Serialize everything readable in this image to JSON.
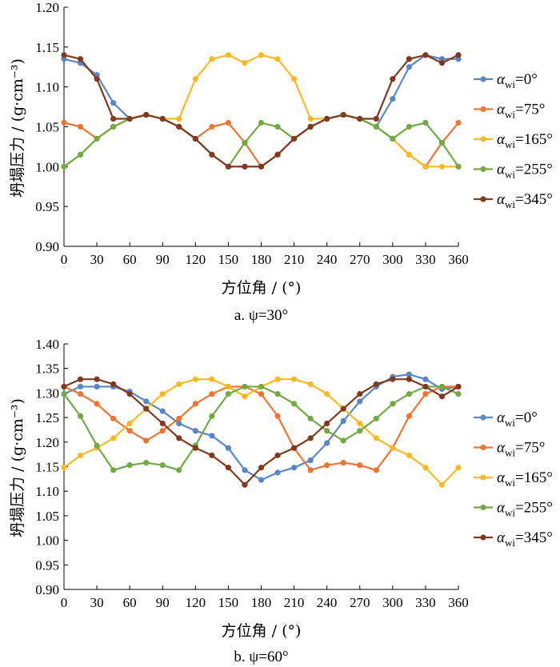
{
  "chart_data": [
    {
      "type": "line",
      "caption": "a. ψ=30°",
      "xlabel": "方位角 / (°)",
      "ylabel": "坍塌压力 / (g·cm⁻³)",
      "xlim": [
        0,
        360
      ],
      "ylim": [
        0.9,
        1.2
      ],
      "xticks": [
        "0",
        "30",
        "60",
        "90",
        "120",
        "150",
        "180",
        "210",
        "240",
        "270",
        "300",
        "330",
        "360"
      ],
      "yticks": [
        "0.90",
        "0.95",
        "1.00",
        "1.05",
        "1.10",
        "1.15",
        "1.20"
      ],
      "x": [
        0,
        15,
        30,
        45,
        60,
        75,
        90,
        105,
        120,
        135,
        150,
        165,
        180,
        195,
        210,
        225,
        240,
        255,
        270,
        285,
        300,
        315,
        330,
        345,
        360
      ],
      "legend_position": "right",
      "series": [
        {
          "name": "αwi=0°",
          "name_main": "α",
          "name_sub": "wi",
          "name_tail": "=0°",
          "color": "#5b86c5",
          "values": [
            1.135,
            1.13,
            1.115,
            1.08,
            1.06,
            1.065,
            1.06,
            1.05,
            1.035,
            1.015,
            1.0,
            1.0,
            1.0,
            1.015,
            1.035,
            1.05,
            1.06,
            1.065,
            1.06,
            1.05,
            1.085,
            1.125,
            1.14,
            1.135,
            1.135
          ]
        },
        {
          "name": "αwi=75°",
          "name_main": "α",
          "name_sub": "wi",
          "name_tail": "=75°",
          "color": "#ed7431",
          "values": [
            1.055,
            1.05,
            1.035,
            1.05,
            1.06,
            1.065,
            1.06,
            1.05,
            1.035,
            1.05,
            1.055,
            1.03,
            1.0,
            1.015,
            1.035,
            1.05,
            1.06,
            1.065,
            1.06,
            1.05,
            1.035,
            1.015,
            1.0,
            1.03,
            1.055
          ]
        },
        {
          "name": "αwi=165°",
          "name_main": "α",
          "name_sub": "wi",
          "name_tail": "=165°",
          "color": "#f9b824",
          "values": [
            1.0,
            1.015,
            1.035,
            1.05,
            1.06,
            1.065,
            1.06,
            1.06,
            1.11,
            1.135,
            1.14,
            1.13,
            1.14,
            1.135,
            1.11,
            1.06,
            1.06,
            1.065,
            1.06,
            1.05,
            1.035,
            1.015,
            1.0,
            1.0,
            1.0
          ]
        },
        {
          "name": "αwi=255°",
          "name_main": "α",
          "name_sub": "wi",
          "name_tail": "=255°",
          "color": "#70a945",
          "values": [
            1.0,
            1.015,
            1.035,
            1.05,
            1.06,
            1.065,
            1.06,
            1.05,
            1.035,
            1.015,
            1.0,
            1.03,
            1.055,
            1.05,
            1.035,
            1.05,
            1.06,
            1.065,
            1.06,
            1.05,
            1.035,
            1.05,
            1.055,
            1.03,
            1.0
          ]
        },
        {
          "name": "αwi=345°",
          "name_main": "α",
          "name_sub": "wi",
          "name_tail": "=345°",
          "color": "#7f3a1f",
          "values": [
            1.14,
            1.135,
            1.11,
            1.06,
            1.06,
            1.065,
            1.06,
            1.05,
            1.035,
            1.015,
            1.0,
            1.0,
            1.0,
            1.015,
            1.035,
            1.05,
            1.06,
            1.065,
            1.06,
            1.06,
            1.11,
            1.135,
            1.14,
            1.13,
            1.14
          ]
        }
      ]
    },
    {
      "type": "line",
      "caption": "b. ψ=60°",
      "xlabel": "方位角 / (°)",
      "ylabel": "坍塌压力 / (g·cm⁻³)",
      "xlim": [
        0,
        360
      ],
      "ylim": [
        0.9,
        1.4
      ],
      "xticks": [
        "0",
        "30",
        "60",
        "90",
        "120",
        "150",
        "180",
        "210",
        "240",
        "270",
        "300",
        "330",
        "360"
      ],
      "yticks": [
        "0.90",
        "0.95",
        "1.00",
        "1.05",
        "1.10",
        "1.15",
        "1.20",
        "1.25",
        "1.30",
        "1.35",
        "1.40"
      ],
      "x": [
        0,
        15,
        30,
        45,
        60,
        75,
        90,
        105,
        120,
        135,
        150,
        165,
        180,
        195,
        210,
        225,
        240,
        255,
        270,
        285,
        300,
        315,
        330,
        345,
        360
      ],
      "legend_position": "right",
      "series": [
        {
          "name": "αwi=0°",
          "name_main": "α",
          "name_sub": "wi",
          "name_tail": "=0°",
          "color": "#5b86c5",
          "values": [
            1.298,
            1.313,
            1.313,
            1.313,
            1.303,
            1.283,
            1.263,
            1.238,
            1.223,
            1.213,
            1.188,
            1.143,
            1.123,
            1.138,
            1.148,
            1.163,
            1.198,
            1.243,
            1.283,
            1.313,
            1.333,
            1.338,
            1.328,
            1.308,
            1.313
          ]
        },
        {
          "name": "αwi=75°",
          "name_main": "α",
          "name_sub": "wi",
          "name_tail": "=75°",
          "color": "#ed7431",
          "values": [
            1.313,
            1.298,
            1.278,
            1.248,
            1.223,
            1.203,
            1.223,
            1.248,
            1.278,
            1.298,
            1.313,
            1.313,
            1.298,
            1.253,
            1.188,
            1.143,
            1.153,
            1.158,
            1.153,
            1.143,
            1.188,
            1.253,
            1.298,
            1.313,
            1.313
          ]
        },
        {
          "name": "αwi=165°",
          "name_main": "α",
          "name_sub": "wi",
          "name_tail": "=165°",
          "color": "#f9b824",
          "values": [
            1.148,
            1.173,
            1.188,
            1.208,
            1.238,
            1.268,
            1.298,
            1.318,
            1.328,
            1.328,
            1.313,
            1.293,
            1.313,
            1.328,
            1.328,
            1.318,
            1.298,
            1.268,
            1.238,
            1.208,
            1.188,
            1.173,
            1.148,
            1.113,
            1.148
          ]
        },
        {
          "name": "αwi=255°",
          "name_main": "α",
          "name_sub": "wi",
          "name_tail": "=255°",
          "color": "#70a945",
          "values": [
            1.298,
            1.253,
            1.193,
            1.143,
            1.153,
            1.158,
            1.153,
            1.143,
            1.193,
            1.253,
            1.298,
            1.313,
            1.313,
            1.298,
            1.278,
            1.248,
            1.223,
            1.203,
            1.223,
            1.248,
            1.278,
            1.298,
            1.313,
            1.313,
            1.298
          ]
        },
        {
          "name": "αwi=345°",
          "name_main": "α",
          "name_sub": "wi",
          "name_tail": "=345°",
          "color": "#7f3a1f",
          "values": [
            1.313,
            1.328,
            1.328,
            1.318,
            1.298,
            1.268,
            1.238,
            1.208,
            1.188,
            1.173,
            1.148,
            1.113,
            1.148,
            1.173,
            1.188,
            1.208,
            1.238,
            1.268,
            1.298,
            1.318,
            1.328,
            1.328,
            1.313,
            1.293,
            1.313
          ]
        }
      ]
    }
  ]
}
